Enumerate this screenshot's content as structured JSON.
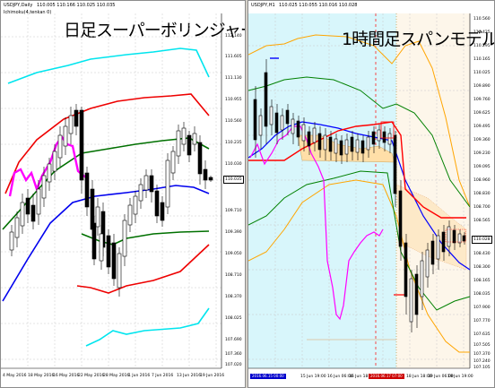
{
  "left": {
    "symbol": "USDJPY,Daily",
    "quote": "110.005 110.166 110.025 110.035",
    "indicator": "Ichimoku(4,tenkan 0)",
    "headline": "日足スーパーボリンジャー",
    "price_label": "110.035",
    "axis_prices": [
      "112.140",
      "111.605",
      "111.130",
      "110.955",
      "110.560",
      "110.235",
      "110.030",
      "109.710",
      "109.390",
      "109.050",
      "108.710",
      "108.370",
      "108.025",
      "107.690",
      "107.360",
      "107.020"
    ],
    "dates": [
      "4 May 2016",
      "10 May 2016",
      "18 May 2016",
      "16 May 2016",
      "22 May 2016",
      "28 May 2016",
      "1 Jun 2016",
      "7 Jun 2016",
      "13 Jun 2016",
      "19 Jun 2016"
    ],
    "colors": {
      "band3": "#00e5ee",
      "band2": "#ee0000",
      "band1": "#007000",
      "mid": "#0000ee",
      "chikou": "#ff00ff"
    }
  },
  "right": {
    "symbol": "USDJPY,H1",
    "quote": "110.025 110.055 110.016 110.028",
    "headline": "1時間足スパンモデル",
    "price_label": "110.028",
    "axis_prices": [
      "110.560",
      "110.425",
      "110.295",
      "110.165",
      "110.025",
      "109.890",
      "109.760",
      "109.625",
      "109.495",
      "109.360",
      "109.230",
      "109.095",
      "108.960",
      "108.830",
      "108.700",
      "108.565",
      "108.430",
      "108.300",
      "108.165",
      "108.035",
      "107.900",
      "107.770",
      "107.635",
      "107.505",
      "107.370",
      "107.240",
      "107.105"
    ],
    "dates": [
      "2016.06.15 00:00",
      "15 Jun 19:00",
      "16 Jun 06:00",
      "16 Jun 18:00",
      "17 Jun 06:00",
      "2016.06.17 06:00",
      "18 Jun 18:00",
      "19 Jun 06:00",
      "19 Jun 19:00",
      "20 Jun 06:00"
    ],
    "date_marker": "2016.06.15 00:00",
    "date_marker2": "2016.06.17 07:00",
    "colors": {
      "span_fill": "#ffdfa8",
      "cloud_bg": "#d8f6fb",
      "bb_outer": "#ffa500",
      "bb_mid": "#008000",
      "ma": "#0000ff",
      "chikou": "#ff00ff",
      "red": "#ff0000"
    }
  }
}
